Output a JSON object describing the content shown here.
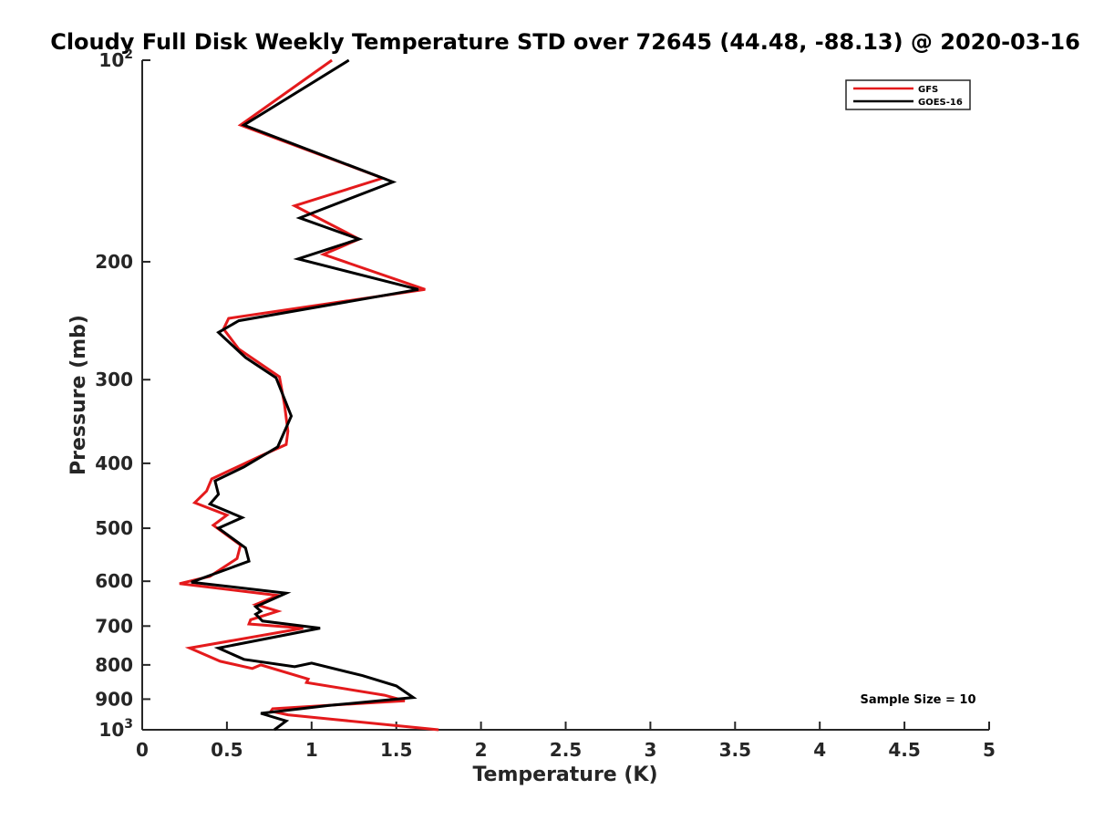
{
  "chart_data": {
    "type": "line",
    "title": "Cloudy Full Disk Weekly Temperature STD over 72645 (44.48, -88.13) @ 2020-03-16",
    "xlabel": "Temperature (K)",
    "ylabel": "Pressure (mb)",
    "xlim": [
      0,
      5
    ],
    "ylim": [
      1000,
      100
    ],
    "yscale": "log",
    "xticks": [
      0,
      0.5,
      1,
      1.5,
      2,
      2.5,
      3,
      3.5,
      4,
      4.5,
      5
    ],
    "xtick_labels": [
      "0",
      "0.5",
      "1",
      "1.5",
      "2",
      "2.5",
      "3",
      "3.5",
      "4",
      "4.5",
      "5"
    ],
    "yticks": [
      {
        "value": 100,
        "label": "10",
        "sup": "2"
      },
      {
        "value": 200,
        "label": "200"
      },
      {
        "value": 300,
        "label": "300"
      },
      {
        "value": 400,
        "label": "400"
      },
      {
        "value": 500,
        "label": "500"
      },
      {
        "value": 600,
        "label": "600"
      },
      {
        "value": 700,
        "label": "700"
      },
      {
        "value": 800,
        "label": "800"
      },
      {
        "value": 900,
        "label": "900"
      },
      {
        "value": 1000,
        "label": "10",
        "sup": "3"
      }
    ],
    "grid": false,
    "legend_position": "top-right",
    "annotation": "Sample Size = 10",
    "series": [
      {
        "name": "GFS",
        "color": "#e41a1c",
        "points": [
          [
            1.12,
            100
          ],
          [
            0.58,
            125
          ],
          [
            1.42,
            150
          ],
          [
            0.9,
            165
          ],
          [
            1.28,
            185
          ],
          [
            1.07,
            195
          ],
          [
            1.67,
            220
          ],
          [
            0.51,
            243
          ],
          [
            0.48,
            252
          ],
          [
            0.57,
            270
          ],
          [
            0.81,
            297
          ],
          [
            0.84,
            327
          ],
          [
            0.86,
            358
          ],
          [
            0.85,
            375
          ],
          [
            0.7,
            390
          ],
          [
            0.41,
            422
          ],
          [
            0.38,
            440
          ],
          [
            0.31,
            458
          ],
          [
            0.5,
            478
          ],
          [
            0.42,
            495
          ],
          [
            0.58,
            530
          ],
          [
            0.56,
            555
          ],
          [
            0.4,
            590
          ],
          [
            0.22,
            605
          ],
          [
            0.8,
            630
          ],
          [
            0.67,
            650
          ],
          [
            0.8,
            665
          ],
          [
            0.64,
            685
          ],
          [
            0.63,
            695
          ],
          [
            0.95,
            705
          ],
          [
            0.28,
            755
          ],
          [
            0.46,
            790
          ],
          [
            0.65,
            810
          ],
          [
            0.7,
            800
          ],
          [
            0.98,
            840
          ],
          [
            0.97,
            850
          ],
          [
            1.43,
            888
          ],
          [
            1.55,
            905
          ],
          [
            0.77,
            930
          ],
          [
            0.76,
            938
          ],
          [
            0.86,
            950
          ],
          [
            1.13,
            965
          ],
          [
            1.75,
            1000
          ]
        ]
      },
      {
        "name": "GOES-16",
        "color": "#000000",
        "points": [
          [
            1.22,
            100
          ],
          [
            0.6,
            125
          ],
          [
            1.48,
            152
          ],
          [
            0.93,
            172
          ],
          [
            1.28,
            185
          ],
          [
            0.92,
            198
          ],
          [
            1.63,
            220
          ],
          [
            0.57,
            245
          ],
          [
            0.45,
            255
          ],
          [
            0.61,
            278
          ],
          [
            0.79,
            298
          ],
          [
            0.88,
            340
          ],
          [
            0.8,
            378
          ],
          [
            0.6,
            405
          ],
          [
            0.43,
            425
          ],
          [
            0.45,
            445
          ],
          [
            0.4,
            460
          ],
          [
            0.59,
            482
          ],
          [
            0.45,
            500
          ],
          [
            0.61,
            535
          ],
          [
            0.63,
            560
          ],
          [
            0.29,
            602
          ],
          [
            0.85,
            625
          ],
          [
            0.67,
            655
          ],
          [
            0.7,
            665
          ],
          [
            0.67,
            672
          ],
          [
            0.71,
            688
          ],
          [
            1.05,
            705
          ],
          [
            0.45,
            755
          ],
          [
            0.6,
            785
          ],
          [
            0.9,
            805
          ],
          [
            1.0,
            795
          ],
          [
            1.3,
            830
          ],
          [
            1.5,
            860
          ],
          [
            1.6,
            895
          ],
          [
            1.1,
            920
          ],
          [
            0.7,
            945
          ],
          [
            0.85,
            970
          ],
          [
            0.78,
            1000
          ]
        ]
      }
    ]
  }
}
